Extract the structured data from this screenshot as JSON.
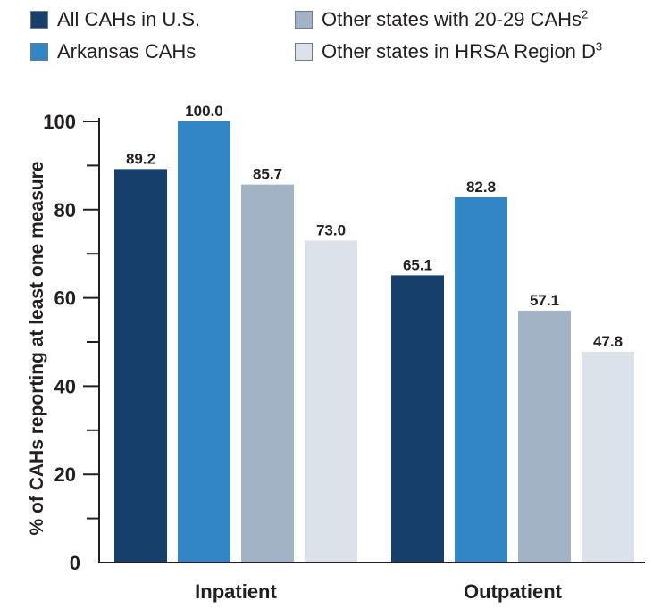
{
  "chart_data": {
    "type": "bar",
    "categories": [
      "Inpatient",
      "Outpatient"
    ],
    "series": [
      {
        "name": "All CAHs in U.S.",
        "values": [
          89.2,
          65.1
        ],
        "color": "#173f6b"
      },
      {
        "name": "Arkansas CAHs",
        "values": [
          100.0,
          82.8
        ],
        "color": "#3386c6"
      },
      {
        "name": "Other states with 20-29 CAHs",
        "sup": "2",
        "values": [
          85.7,
          57.1
        ],
        "color": "#a3b3c6"
      },
      {
        "name": "Other states in HRSA Region D",
        "sup": "3",
        "values": [
          73.0,
          47.8
        ],
        "color": "#dce2ea"
      }
    ],
    "ylabel": "% of CAHs reporting at least one measure",
    "ylim": [
      0,
      100
    ],
    "yticks": [
      0,
      20,
      40,
      60,
      80,
      100
    ],
    "legend_position": "top",
    "grid": false
  }
}
